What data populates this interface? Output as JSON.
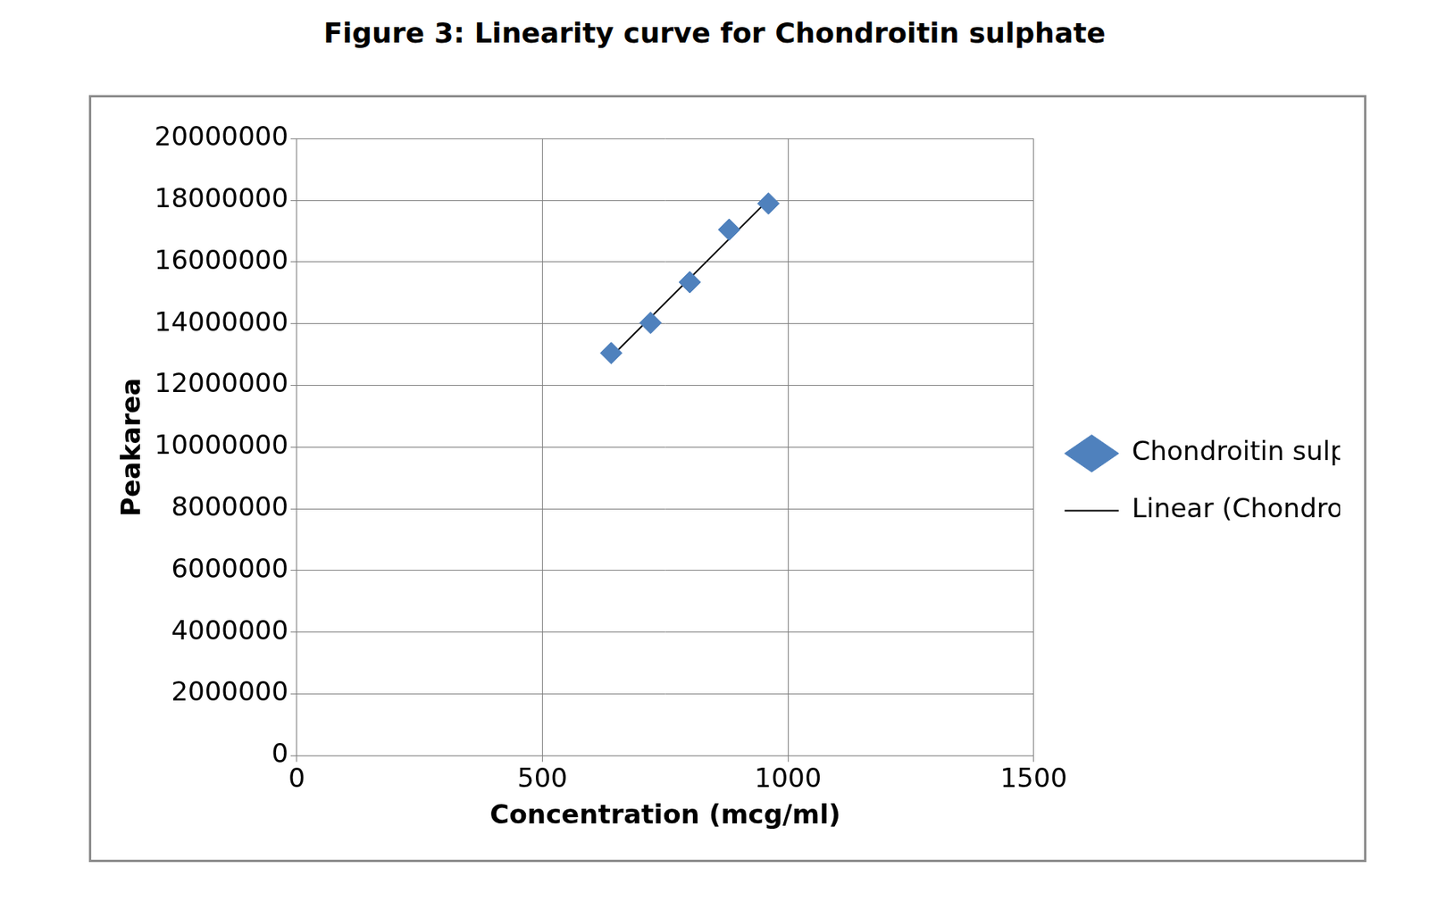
{
  "chart_data": {
    "type": "scatter",
    "title": "Figure 3: Linearity curve for Chondroitin sulphate",
    "x_label": "Concentration (mcg/ml)",
    "y_label": "Peakarea",
    "xlim": [
      0,
      1500
    ],
    "xticks": [
      0,
      500,
      1000,
      1500
    ],
    "ylim": [
      0,
      20000000
    ],
    "yticks": [
      0,
      2000000,
      4000000,
      6000000,
      8000000,
      10000000,
      12000000,
      14000000,
      16000000,
      18000000,
      20000000
    ],
    "grid": true,
    "legend": "right",
    "series": [
      {
        "name": "Chondroitin sulphate",
        "type": "scatter",
        "color": "#4f81bd",
        "marker": "diamond",
        "x": [
          640,
          720,
          800,
          880,
          960
        ],
        "values": [
          13050000,
          14030000,
          15350000,
          17050000,
          17900000
        ]
      },
      {
        "name": "Linear (Chondroitin sulphate)",
        "type": "line",
        "color": "#000000",
        "line_style": "solid",
        "x": [
          640,
          960
        ],
        "values": [
          12930000,
          18020000
        ]
      }
    ]
  }
}
